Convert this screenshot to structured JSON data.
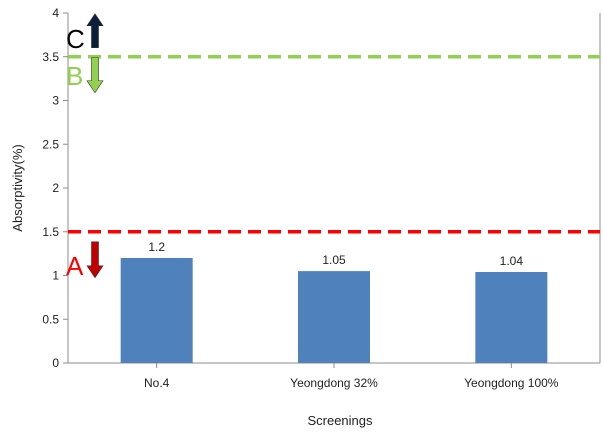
{
  "chart_data": {
    "type": "bar",
    "title": "",
    "xlabel": "Screenings",
    "ylabel": "Absorptivity(%)",
    "ylim": [
      0,
      4
    ],
    "yticks": [
      "0",
      "0.5",
      "1",
      "1.5",
      "2",
      "2.5",
      "3",
      "3.5",
      "4"
    ],
    "categories": [
      "No.4",
      "Yeongdong 32%",
      "Yeongdong 100%"
    ],
    "values": [
      1.2,
      1.05,
      1.04
    ],
    "data_labels": [
      "1.2",
      "1.05",
      "1.04"
    ],
    "grid": false,
    "bar_color": "#4f81bd",
    "reference_lines": [
      {
        "y": 3.5,
        "color": "#92d050",
        "style": "dashed"
      },
      {
        "y": 1.5,
        "color": "#ff0000",
        "style": "dashed"
      }
    ],
    "zones": [
      {
        "label": "C",
        "color": "#000000",
        "arrow": "up",
        "arrow_color": "#0b1f3a",
        "at": 3.5
      },
      {
        "label": "B",
        "color": "#92d050",
        "arrow": "down",
        "arrow_color": "#92d050",
        "at": 3.5
      },
      {
        "label": "A",
        "color": "#ff0000",
        "arrow": "down",
        "arrow_color": "#c00000",
        "at": 1.5
      }
    ]
  }
}
